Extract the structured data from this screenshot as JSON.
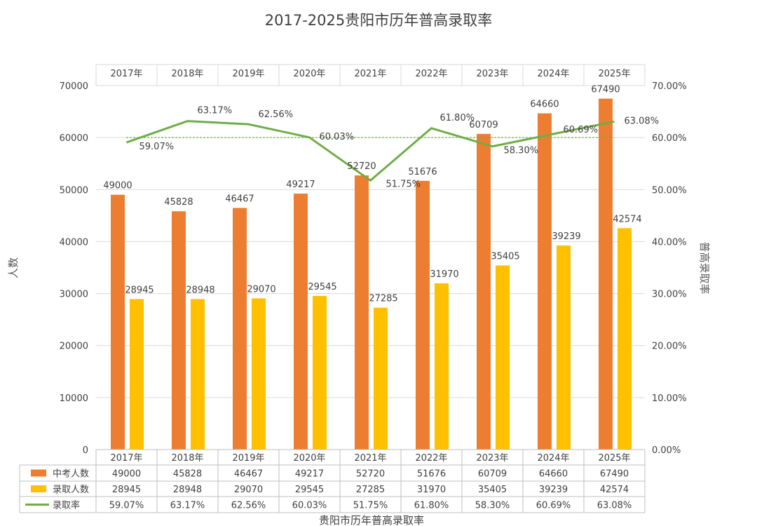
{
  "chart_data": {
    "type": "bar",
    "title": "2017-2025贵阳市历年普高录取率",
    "categories": [
      "2017年",
      "2018年",
      "2019年",
      "2020年",
      "2021年",
      "2022年",
      "2023年",
      "2024年",
      "2025年"
    ],
    "series": [
      {
        "name": "中考人数",
        "type": "bar",
        "axis": "left",
        "color": "#ED7D31",
        "values": [
          49000,
          45828,
          46467,
          49217,
          52720,
          51676,
          60709,
          64660,
          67490
        ]
      },
      {
        "name": "录取人数",
        "type": "bar",
        "axis": "left",
        "color": "#FFC000",
        "values": [
          28945,
          28948,
          29070,
          29545,
          27285,
          31970,
          35405,
          39239,
          42574
        ]
      },
      {
        "name": "录取率",
        "type": "line",
        "axis": "right",
        "color": "#70AD47",
        "values": [
          59.07,
          63.17,
          62.56,
          60.03,
          51.75,
          61.8,
          58.3,
          60.69,
          63.08
        ]
      }
    ],
    "value_labels": {
      "中考人数": [
        "49000",
        "45828",
        "46467",
        "49217",
        "52720",
        "51676",
        "60709",
        "64660",
        "67490"
      ],
      "录取人数": [
        "28945",
        "28948",
        "29070",
        "29545",
        "27285",
        "31970",
        "35405",
        "39239",
        "42574"
      ],
      "录取率": [
        "59.07%",
        "63.17%",
        "62.56%",
        "60.03%",
        "51.75%",
        "61.80%",
        "58.30%",
        "60.69%",
        "63.08%"
      ]
    },
    "ylabel": "人数",
    "ylabel_right": "普高录取率",
    "xlabel": "贵阳市历年普高录取率",
    "ylim": [
      0,
      70000
    ],
    "y_ticks": [
      0,
      10000,
      20000,
      30000,
      40000,
      50000,
      60000,
      70000
    ],
    "ylim_right": [
      0,
      70
    ],
    "y_ticks_right": [
      "0.00%",
      "10.00%",
      "20.00%",
      "30.00%",
      "40.00%",
      "50.00%",
      "60.00%",
      "70.00%"
    ],
    "reference_line_right": 60,
    "grid": true,
    "data_table": true
  }
}
